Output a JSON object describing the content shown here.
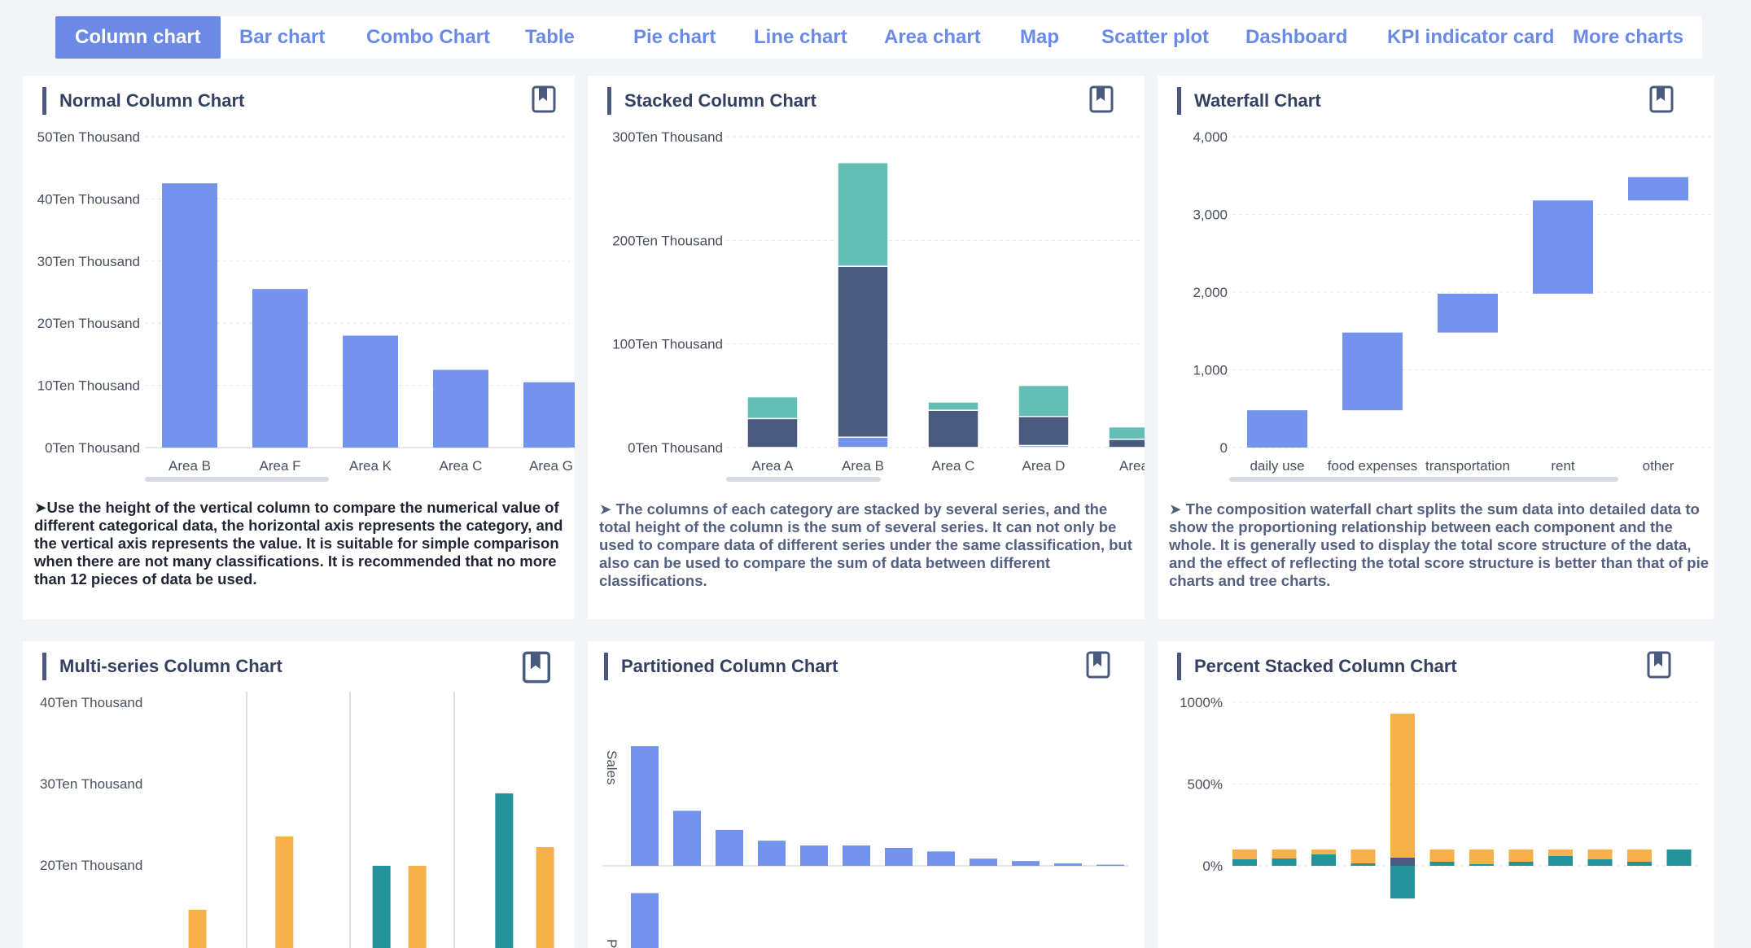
{
  "tabs": [
    {
      "label": "Column chart",
      "active": true
    },
    {
      "label": "Bar chart"
    },
    {
      "label": "Combo Chart"
    },
    {
      "label": "Table"
    },
    {
      "label": "Pie chart"
    },
    {
      "label": "Line chart"
    },
    {
      "label": "Area chart"
    },
    {
      "label": "Map"
    },
    {
      "label": "Scatter plot"
    },
    {
      "label": "Dashboard"
    },
    {
      "label": "KPI indicator card"
    },
    {
      "label": "More charts"
    }
  ],
  "colors": {
    "accent": "#6b8ae6",
    "blue": "#7393ec",
    "navy": "#4a5a7f",
    "teal": "#63bfb5",
    "orange": "#f6b14a",
    "dark_teal": "#23939b"
  },
  "cards": [
    {
      "title": "Normal Column Chart",
      "icon": "bookmark-icon",
      "description": "➤Use the height of the vertical column to compare the numerical value of different categorical data, the horizontal axis represents the category, and the vertical axis represents the value. It is suitable for simple comparison when there are not many classifications. It is recommended that no more than 12 pieces of data be used."
    },
    {
      "title": "Stacked Column Chart",
      "icon": "bookmark-icon",
      "description": "➤ The columns of each category are stacked by several series, and the total height of the column is the sum of several series. It can not only be used to compare data of different series under the same classification, but also can be used to compare the sum of data between different classifications."
    },
    {
      "title": "Waterfall Chart",
      "icon": "bookmark-icon",
      "description": "➤ The composition waterfall chart splits the sum data into detailed data to show the proportioning relationship between each component and the whole. It is generally used to display the total score structure of the data, and the effect of reflecting the total score structure is better than that of pie charts and tree charts."
    },
    {
      "title": "Multi-series Column Chart",
      "icon": "bookmark-icon"
    },
    {
      "title": "Partitioned Column Chart",
      "icon": "bookmark-icon"
    },
    {
      "title": "Percent Stacked Column Chart",
      "icon": "bookmark-icon"
    }
  ],
  "chart_data": [
    {
      "type": "bar",
      "title": "Normal Column Chart",
      "categories": [
        "Area B",
        "Area F",
        "Area K",
        "Area C",
        "Area G"
      ],
      "values": [
        42.5,
        25.5,
        18,
        12.5,
        10.5
      ],
      "ylim": [
        0,
        50
      ],
      "yticks": [
        0,
        10,
        20,
        30,
        40,
        50
      ],
      "ytick_labels": [
        "0Ten Thousand",
        "10Ten Thousand",
        "20Ten Thousand",
        "30Ten Thousand",
        "40Ten Thousand",
        "50Ten Thousand"
      ],
      "grid": true
    },
    {
      "type": "bar",
      "stacked": true,
      "title": "Stacked Column Chart",
      "categories": [
        "Area A",
        "Area B",
        "Area C",
        "Area D",
        "Area"
      ],
      "series": [
        {
          "values": [
            0,
            10,
            0,
            2,
            0
          ],
          "color": "#7393ec"
        },
        {
          "values": [
            28,
            165,
            36,
            28,
            8
          ],
          "color": "#4a5a7f"
        },
        {
          "values": [
            21,
            100,
            8,
            30,
            12
          ],
          "color": "#63bfb5"
        }
      ],
      "ylim": [
        0,
        300
      ],
      "yticks": [
        0,
        100,
        200,
        300
      ],
      "ytick_labels": [
        "0Ten Thousand",
        "100Ten Thousand",
        "200Ten Thousand",
        "300Ten Thousand"
      ],
      "grid": true
    },
    {
      "type": "waterfall",
      "title": "Waterfall Chart",
      "categories": [
        "daily use",
        "food expenses",
        "transportation",
        "rent",
        "other"
      ],
      "values": [
        480,
        1000,
        500,
        1200,
        300
      ],
      "ylim": [
        0,
        4000
      ],
      "yticks": [
        0,
        1000,
        2000,
        3000,
        4000
      ],
      "ytick_labels": [
        "0",
        "1,000",
        "2,000",
        "3,000",
        "4,000"
      ],
      "grid": true
    },
    {
      "type": "bar",
      "title": "Multi-series Column Chart",
      "yticks": [
        20,
        30,
        40
      ],
      "ytick_labels": [
        "20Ten Thousand",
        "30Ten Thousand",
        "40Ten Thousand"
      ],
      "ylim": [
        13.5,
        40
      ],
      "bars": [
        {
          "x": 0.27,
          "value": 14.5,
          "color": "#f6b14a"
        },
        {
          "x": 0.44,
          "value": 23.5,
          "color": "#f6b14a"
        },
        {
          "x": 0.63,
          "value": 19.9,
          "color": "#23939b"
        },
        {
          "x": 0.7,
          "value": 19.9,
          "color": "#f6b14a"
        },
        {
          "x": 0.87,
          "value": 28.8,
          "color": "#23939b"
        },
        {
          "x": 0.95,
          "value": 22.2,
          "color": "#f6b14a"
        }
      ]
    },
    {
      "type": "bar",
      "title": "Partitioned Column Chart",
      "ylabel": "Sales",
      "values": [
        100,
        46,
        30,
        21,
        17,
        17,
        15,
        12,
        6,
        4,
        2,
        1
      ],
      "second_panel_first_value": 35
    },
    {
      "type": "bar",
      "stacked": true,
      "title": "Percent Stacked Column Chart",
      "yticks": [
        0,
        500,
        1000
      ],
      "ytick_labels": [
        "0%",
        "500%",
        "1000%"
      ],
      "ylim": [
        0,
        1000
      ],
      "series": [
        {
          "color": "#23939b",
          "values": [
            40,
            45,
            70,
            15,
            -200,
            25,
            10,
            25,
            60,
            40,
            25,
            100
          ]
        },
        {
          "color": "#4a5a7f",
          "values": [
            0,
            0,
            0,
            0,
            50,
            0,
            0,
            0,
            0,
            0,
            0,
            0
          ]
        },
        {
          "color": "#f6b14a",
          "values": [
            60,
            55,
            30,
            85,
            880,
            75,
            90,
            75,
            40,
            60,
            75,
            0
          ]
        }
      ]
    }
  ]
}
